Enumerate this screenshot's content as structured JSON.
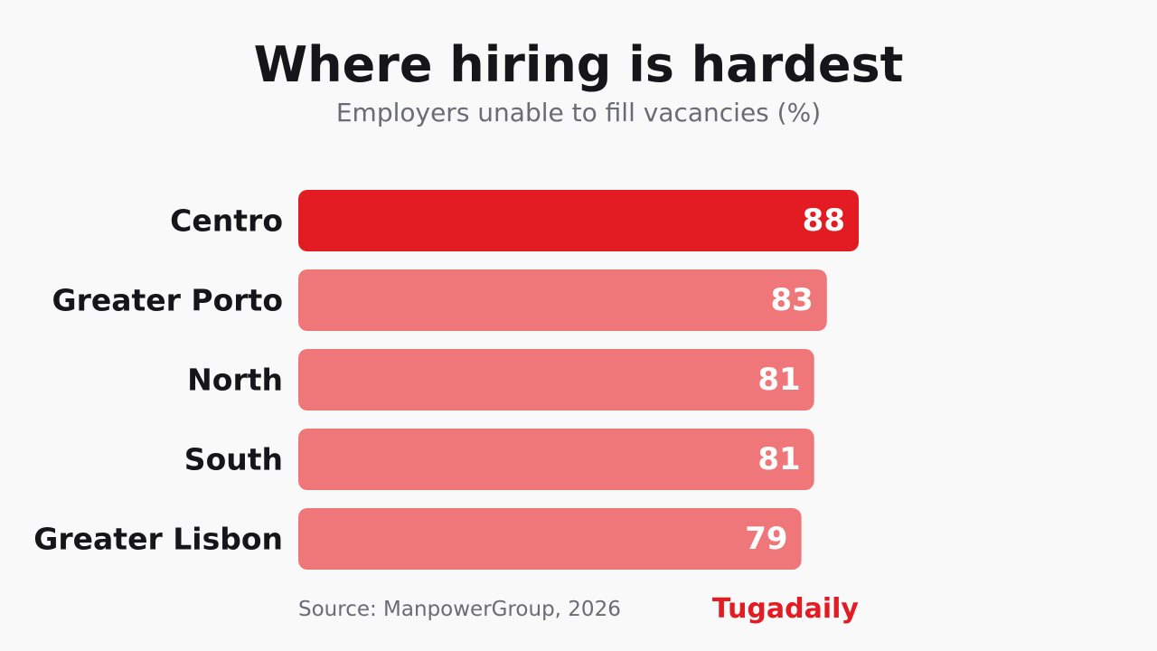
{
  "chart_data": {
    "type": "bar",
    "orientation": "horizontal",
    "title": "Where hiring is hardest",
    "subtitle": "Employers unable to fill vacancies (%)",
    "categories": [
      "Centro",
      "Greater Porto",
      "North",
      "South",
      "Greater Lisbon"
    ],
    "values": [
      88,
      83,
      81,
      81,
      79
    ],
    "highlight": "Centro",
    "data_labels": true,
    "grid": false,
    "colors": {
      "highlight": "#e31b23",
      "default": "#ef7779",
      "label": "#ffffff",
      "category_text": "#15151a"
    }
  },
  "footer": {
    "source": "Source: ManpowerGroup, 2026",
    "brand": "Tugadaily"
  }
}
